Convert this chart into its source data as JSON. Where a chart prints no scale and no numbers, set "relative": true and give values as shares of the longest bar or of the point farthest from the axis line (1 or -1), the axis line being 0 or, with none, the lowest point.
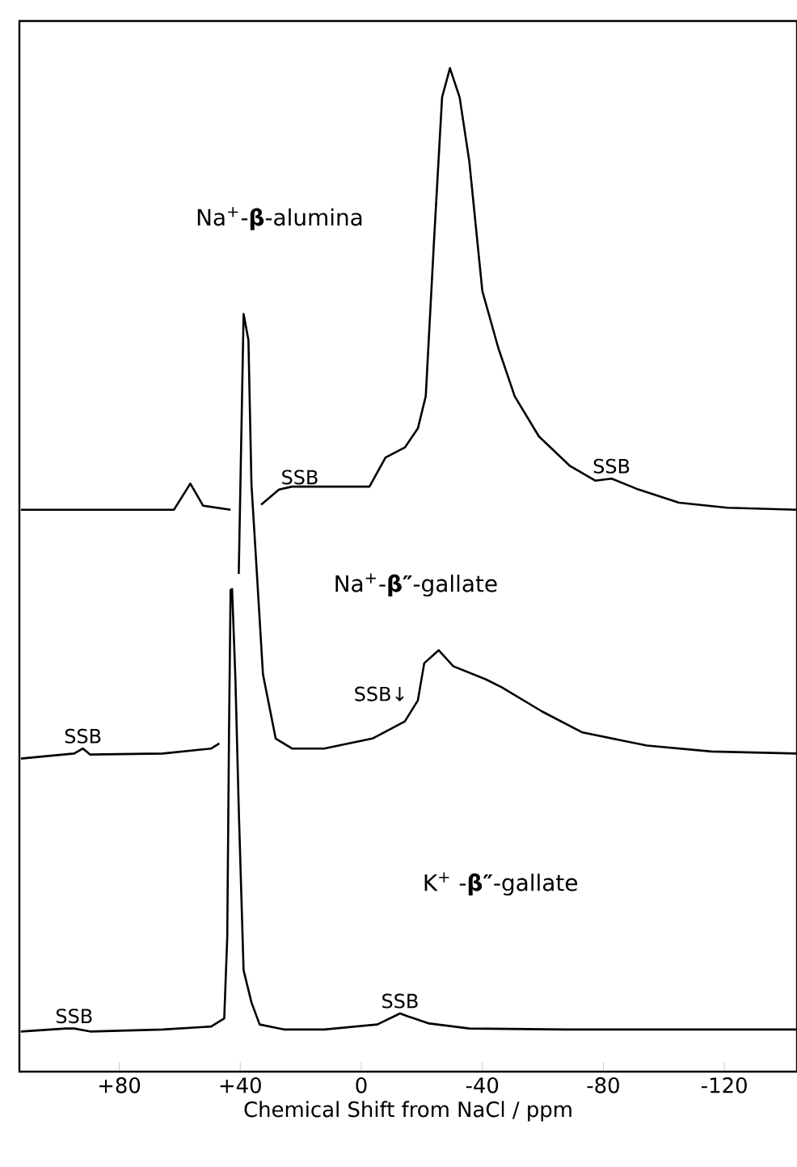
{
  "chart_data": {
    "type": "line",
    "relative": true,
    "xlabel": "Chemical Shift from NaCl / ppm",
    "xlim": [
      113,
      -144
    ],
    "xticks": [
      {
        "value": 80,
        "label": "+80"
      },
      {
        "value": 40,
        "label": "+40"
      },
      0,
      -40,
      -80,
      -120
    ],
    "marker": "none",
    "line_style": "solid",
    "series": [
      {
        "color": "#000000",
        "x": [
          112.5,
          61.9,
          56.5,
          52.3,
          43.2,
          37,
          33.1,
          27.2,
          22.9,
          -2.7,
          -8.0,
          -14.4,
          -18.7,
          -21.3,
          -24.0,
          -26.7,
          -29.3,
          -32.5,
          -35.7,
          -40,
          -45.3,
          -50.7,
          -58.7,
          -68.8,
          -77.3,
          -82.7,
          -91.7,
          -105,
          -121,
          -144
        ],
        "values": [
          0.56,
          0.56,
          0.586,
          0.564,
          0.56,
          null,
          0.565,
          0.58,
          0.583,
          0.583,
          0.612,
          0.622,
          0.641,
          0.673,
          0.826,
          0.971,
          1.0,
          0.971,
          0.907,
          0.778,
          0.721,
          0.673,
          0.633,
          0.604,
          0.589,
          0.591,
          0.58,
          0.567,
          0.562,
          0.56
        ]
      },
      {
        "color": "#000000",
        "x": [
          112.5,
          94.9,
          92,
          89.6,
          65.6,
          49.6,
          46.9,
          44,
          40.5,
          38.9,
          37.3,
          36.3,
          35.2,
          32.5,
          28.3,
          22.9,
          12.3,
          -3.7,
          -14.4,
          -18.7,
          -20.8,
          -25.6,
          -30.4,
          -41.1,
          -46.4,
          -59.7,
          -73.1,
          -94.4,
          -115.7,
          -144
        ],
        "values": [
          0.312,
          0.317,
          0.322,
          0.316,
          0.317,
          0.322,
          0.327,
          null,
          0.496,
          0.755,
          0.729,
          0.585,
          0.531,
          0.396,
          0.332,
          0.322,
          0.322,
          0.332,
          0.349,
          0.37,
          0.407,
          0.42,
          0.404,
          0.391,
          0.383,
          0.359,
          0.338,
          0.325,
          0.319,
          0.317
        ]
      },
      {
        "color": "#000000",
        "x": [
          112.5,
          97.6,
          94.9,
          89.6,
          65.6,
          49.6,
          45.3,
          44.3,
          43.7,
          43.2,
          42.7,
          41.6,
          40.5,
          38.9,
          36.3,
          33.6,
          25.6,
          12.3,
          -5.3,
          -12.8,
          -15.5,
          -22.4,
          -35.7,
          -67.7,
          -144
        ],
        "values": [
          0.04,
          0.043,
          0.043,
          0.04,
          0.042,
          0.045,
          0.053,
          0.134,
          0.343,
          0.48,
          0.481,
          0.391,
          0.262,
          0.101,
          0.069,
          0.047,
          0.042,
          0.042,
          0.047,
          0.058,
          0.055,
          0.048,
          0.043,
          0.042,
          0.042
        ]
      }
    ],
    "annotations": [
      "Na$^{+}$-**β**-alumina",
      "Na$^{+}$-**β″**-gallate",
      "K$^{+}$ -**β″**-gallate",
      {
        "text": "SSB",
        "x": 27.2,
        "y": 0.58
      },
      {
        "text": "SSB",
        "x": -82.7,
        "y": 0.591
      },
      {
        "text": "SSB",
        "x": 92,
        "y": 0.322
      },
      {
        "text": "SSB↓",
        "x": -16,
        "y": 0.364
      },
      {
        "text": "SSB",
        "x": 94.9,
        "y": 0.043
      },
      {
        "text": "SSB",
        "x": -12.8,
        "y": 0.058
      }
    ]
  }
}
